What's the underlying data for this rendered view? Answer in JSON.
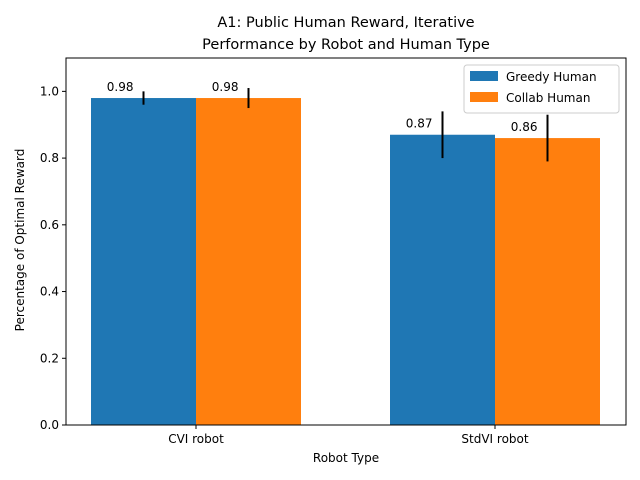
{
  "chart_data": {
    "type": "bar",
    "title_line1": "A1: Public Human Reward, Iterative",
    "title_line2": "Performance by Robot and Human Type",
    "xlabel": "Robot Type",
    "ylabel": "Percentage of Optimal Reward",
    "categories": [
      "CVI robot",
      "StdVI robot"
    ],
    "ylim": [
      0,
      1.1
    ],
    "yticks": [
      0.0,
      0.2,
      0.4,
      0.6,
      0.8,
      1.0
    ],
    "ytick_labels": [
      "0.0",
      "0.2",
      "0.4",
      "0.6",
      "0.8",
      "1.0"
    ],
    "grid": false,
    "legend_position": "top-right",
    "series": [
      {
        "name": "Greedy Human",
        "color": "#1f77b4",
        "values": [
          0.98,
          0.87
        ],
        "errors": [
          0.02,
          0.07
        ],
        "labels": [
          "0.98",
          "0.87"
        ]
      },
      {
        "name": "Collab Human",
        "color": "#ff7f0e",
        "values": [
          0.98,
          0.86
        ],
        "errors": [
          0.03,
          0.07
        ],
        "labels": [
          "0.98",
          "0.86"
        ]
      }
    ]
  }
}
